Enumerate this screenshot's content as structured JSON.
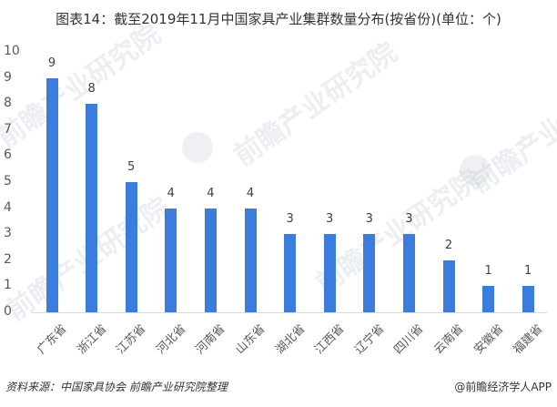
{
  "title": "图表14：截至2019年11月中国家具产业集群数量分布(按省份)(单位：个)",
  "source": "资料来源：中国家具协会 前瞻产业研究院整理",
  "credit": "@前瞻经济学人APP",
  "watermark": "前瞻产业研究院",
  "colors": {
    "bar": "#3b7ddd",
    "axis": "#d9d9d9"
  },
  "y_ticks": [
    "10",
    "9",
    "8",
    "7",
    "6",
    "5",
    "4",
    "3",
    "2",
    "1",
    "0"
  ],
  "bars": [
    {
      "label": "广东省",
      "value": "9"
    },
    {
      "label": "浙江省",
      "value": "8"
    },
    {
      "label": "江苏省",
      "value": "5"
    },
    {
      "label": "河北省",
      "value": "4"
    },
    {
      "label": "河南省",
      "value": "4"
    },
    {
      "label": "山东省",
      "value": "4"
    },
    {
      "label": "湖北省",
      "value": "3"
    },
    {
      "label": "江西省",
      "value": "3"
    },
    {
      "label": "辽宁省",
      "value": "3"
    },
    {
      "label": "四川省",
      "value": "3"
    },
    {
      "label": "云南省",
      "value": "2"
    },
    {
      "label": "安徽省",
      "value": "1"
    },
    {
      "label": "福建省",
      "value": "1"
    }
  ],
  "chart_data": {
    "type": "bar",
    "title": "图表14：截至2019年11月中国家具产业集群数量分布(按省份)(单位：个)",
    "categories": [
      "广东省",
      "浙江省",
      "江苏省",
      "河北省",
      "河南省",
      "山东省",
      "湖北省",
      "江西省",
      "辽宁省",
      "四川省",
      "云南省",
      "安徽省",
      "福建省"
    ],
    "values": [
      9,
      8,
      5,
      4,
      4,
      4,
      3,
      3,
      3,
      3,
      2,
      1,
      1
    ],
    "xlabel": "",
    "ylabel": "",
    "ylim": [
      0,
      10
    ],
    "yticks": [
      0,
      1,
      2,
      3,
      4,
      5,
      6,
      7,
      8,
      9,
      10
    ],
    "grid": false,
    "legend": "none",
    "data_labels": true
  }
}
